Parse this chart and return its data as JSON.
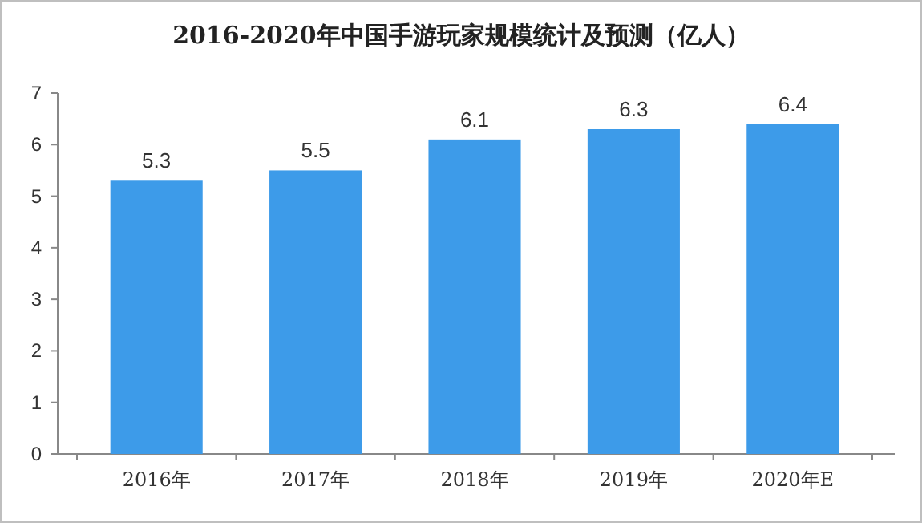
{
  "chart_data": {
    "type": "bar",
    "title": "2016-2020年中国手游玩家规模统计及预测（亿人）",
    "categories": [
      "2016年",
      "2017年",
      "2018年",
      "2019年",
      "2020年E"
    ],
    "values": [
      5.3,
      5.5,
      6.1,
      6.3,
      6.4
    ],
    "color": "#3d9be9",
    "ylim": [
      0,
      7
    ],
    "yticks": [
      0,
      1,
      2,
      3,
      4,
      5,
      6,
      7
    ],
    "grid": false,
    "data_labels": true
  }
}
